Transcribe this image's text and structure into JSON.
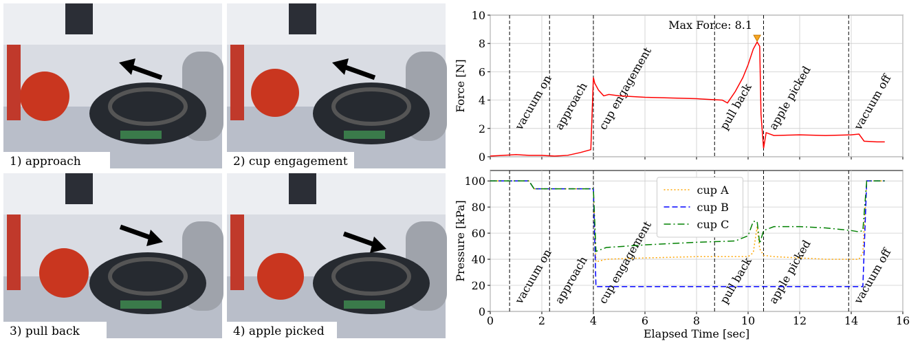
{
  "photos": [
    {
      "caption": "1) approach"
    },
    {
      "caption": "2) cup engagement"
    },
    {
      "caption": "3) pull back"
    },
    {
      "caption": "4) apple picked"
    }
  ],
  "chart_data": [
    {
      "type": "line",
      "ylabel": "Force [N]",
      "xlim": [
        0,
        16
      ],
      "xticks": [
        0,
        2,
        4,
        6,
        8,
        10,
        12,
        14,
        16
      ],
      "ylim": [
        0,
        10
      ],
      "yticks": [
        0,
        2,
        4,
        6,
        8,
        10
      ],
      "grid": true,
      "color": "#ff0000",
      "x": [
        0,
        0.5,
        1,
        1.5,
        2,
        2.5,
        3,
        3.5,
        3.9,
        4.0,
        4.05,
        4.2,
        4.4,
        4.6,
        5,
        6,
        7,
        8,
        8.5,
        9,
        9.2,
        9.5,
        9.8,
        10,
        10.2,
        10.35,
        10.45,
        10.5,
        10.6,
        10.7,
        11,
        12,
        13,
        14,
        14.3,
        14.5,
        15,
        15.3
      ],
      "values": [
        0.05,
        0.1,
        0.15,
        0.1,
        0.1,
        0.05,
        0.1,
        0.3,
        0.5,
        5.6,
        5.2,
        4.7,
        4.3,
        4.4,
        4.3,
        4.2,
        4.15,
        4.1,
        4.05,
        4.0,
        3.8,
        4.6,
        5.6,
        6.5,
        7.6,
        8.1,
        7.8,
        3.0,
        0.6,
        1.7,
        1.5,
        1.55,
        1.5,
        1.55,
        1.6,
        1.1,
        1.05,
        1.05
      ],
      "annotation": {
        "text": "Max Force: 8.1",
        "x": 10.35,
        "y": 8.1,
        "color": "#f5a623"
      },
      "events": [
        {
          "label": "vacuum on",
          "x": 0.75
        },
        {
          "label": "approach",
          "x": 2.3
        },
        {
          "label": "cup engagement",
          "x": 4.0
        },
        {
          "label": "pull back",
          "x": 8.7
        },
        {
          "label": "apple picked",
          "x": 10.6
        },
        {
          "label": "vacuum off",
          "x": 13.9
        }
      ]
    },
    {
      "type": "line",
      "ylabel": "Pressure [kPa]",
      "xlabel": "Elapsed Time [sec]",
      "xlim": [
        0,
        16
      ],
      "xticks": [
        0,
        2,
        4,
        6,
        8,
        10,
        12,
        14,
        16
      ],
      "ylim": [
        0,
        108
      ],
      "yticks": [
        0,
        20,
        40,
        60,
        80,
        100
      ],
      "grid": true,
      "legend": "upper center",
      "x": [
        0,
        0.75,
        1.5,
        1.7,
        3.9,
        4.0,
        4.1,
        4.5,
        6,
        8,
        9.5,
        10,
        10.2,
        10.35,
        10.45,
        10.6,
        11,
        12,
        13,
        14,
        14.3,
        14.45,
        14.6,
        15.3
      ],
      "series": [
        {
          "name": "cup A",
          "color": "#ffa500",
          "dash": "dotted",
          "values": [
            100,
            100,
            100,
            94,
            94,
            94,
            38,
            40,
            41,
            42,
            42,
            42,
            45,
            65,
            48,
            43,
            42,
            41,
            40,
            40,
            40,
            45,
            100,
            100
          ]
        },
        {
          "name": "cup B",
          "color": "#0000ff",
          "dash": "dashed",
          "values": [
            100,
            100,
            100,
            94,
            94,
            94,
            19,
            19,
            19,
            19,
            19,
            19,
            19,
            19,
            19,
            19,
            19,
            19,
            19,
            19,
            19,
            19,
            100,
            100
          ]
        },
        {
          "name": "cup C",
          "color": "#008000",
          "dash": "dashdot",
          "values": [
            100,
            100,
            100,
            94,
            94,
            94,
            46,
            49,
            51,
            53,
            54,
            58,
            69,
            69,
            52,
            62,
            65,
            65,
            64,
            62,
            61,
            62,
            100,
            100
          ]
        }
      ],
      "events": [
        {
          "label": "vacuum on",
          "x": 0.75
        },
        {
          "label": "approach",
          "x": 2.3
        },
        {
          "label": "cup engagement",
          "x": 4.0
        },
        {
          "label": "pull back",
          "x": 8.7
        },
        {
          "label": "apple picked",
          "x": 10.6
        },
        {
          "label": "vacuum off",
          "x": 13.9
        }
      ]
    }
  ]
}
